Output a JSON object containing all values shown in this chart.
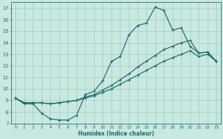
{
  "title": "",
  "xlabel": "Humidex (Indice chaleur)",
  "xlim": [
    -0.5,
    23.5
  ],
  "ylim": [
    7,
    17.5
  ],
  "xticks": [
    0,
    1,
    2,
    3,
    4,
    5,
    6,
    7,
    8,
    9,
    10,
    11,
    12,
    13,
    14,
    15,
    16,
    17,
    18,
    19,
    20,
    21,
    22,
    23
  ],
  "yticks": [
    7,
    8,
    9,
    10,
    11,
    12,
    13,
    14,
    15,
    16,
    17
  ],
  "bg_color": "#c8e8e0",
  "grid_color": "#a8ccc8",
  "line_color": "#1a6b6b",
  "line1_x": [
    0,
    1,
    2,
    3,
    4,
    5,
    6,
    7,
    8,
    9,
    10,
    11,
    12,
    13,
    14,
    15,
    16,
    17,
    18,
    19,
    20,
    21,
    22,
    23
  ],
  "line1_y": [
    9.2,
    8.7,
    8.7,
    7.9,
    7.4,
    7.3,
    7.3,
    7.7,
    9.5,
    9.8,
    10.7,
    12.4,
    12.8,
    14.7,
    15.5,
    15.7,
    17.1,
    16.8,
    15.1,
    15.3,
    13.7,
    13.1,
    13.2,
    12.4
  ],
  "line2_x": [
    0,
    1,
    2,
    3,
    4,
    5,
    6,
    7,
    8,
    9,
    10,
    11,
    12,
    13,
    14,
    15,
    16,
    17,
    18,
    19,
    20,
    21,
    22,
    23
  ],
  "line2_y": [
    9.2,
    8.8,
    8.8,
    8.8,
    8.7,
    8.8,
    8.9,
    9.0,
    9.3,
    9.5,
    9.9,
    10.3,
    10.8,
    11.3,
    11.9,
    12.4,
    12.9,
    13.4,
    13.7,
    14.0,
    14.2,
    13.1,
    13.2,
    12.4
  ],
  "line3_x": [
    0,
    1,
    2,
    3,
    4,
    5,
    6,
    7,
    8,
    9,
    10,
    11,
    12,
    13,
    14,
    15,
    16,
    17,
    18,
    19,
    20,
    21,
    22,
    23
  ],
  "line3_y": [
    9.2,
    8.8,
    8.8,
    8.8,
    8.7,
    8.8,
    8.9,
    9.0,
    9.2,
    9.4,
    9.7,
    10.0,
    10.4,
    10.8,
    11.2,
    11.6,
    12.0,
    12.4,
    12.7,
    13.0,
    13.3,
    12.8,
    13.0,
    12.4
  ]
}
